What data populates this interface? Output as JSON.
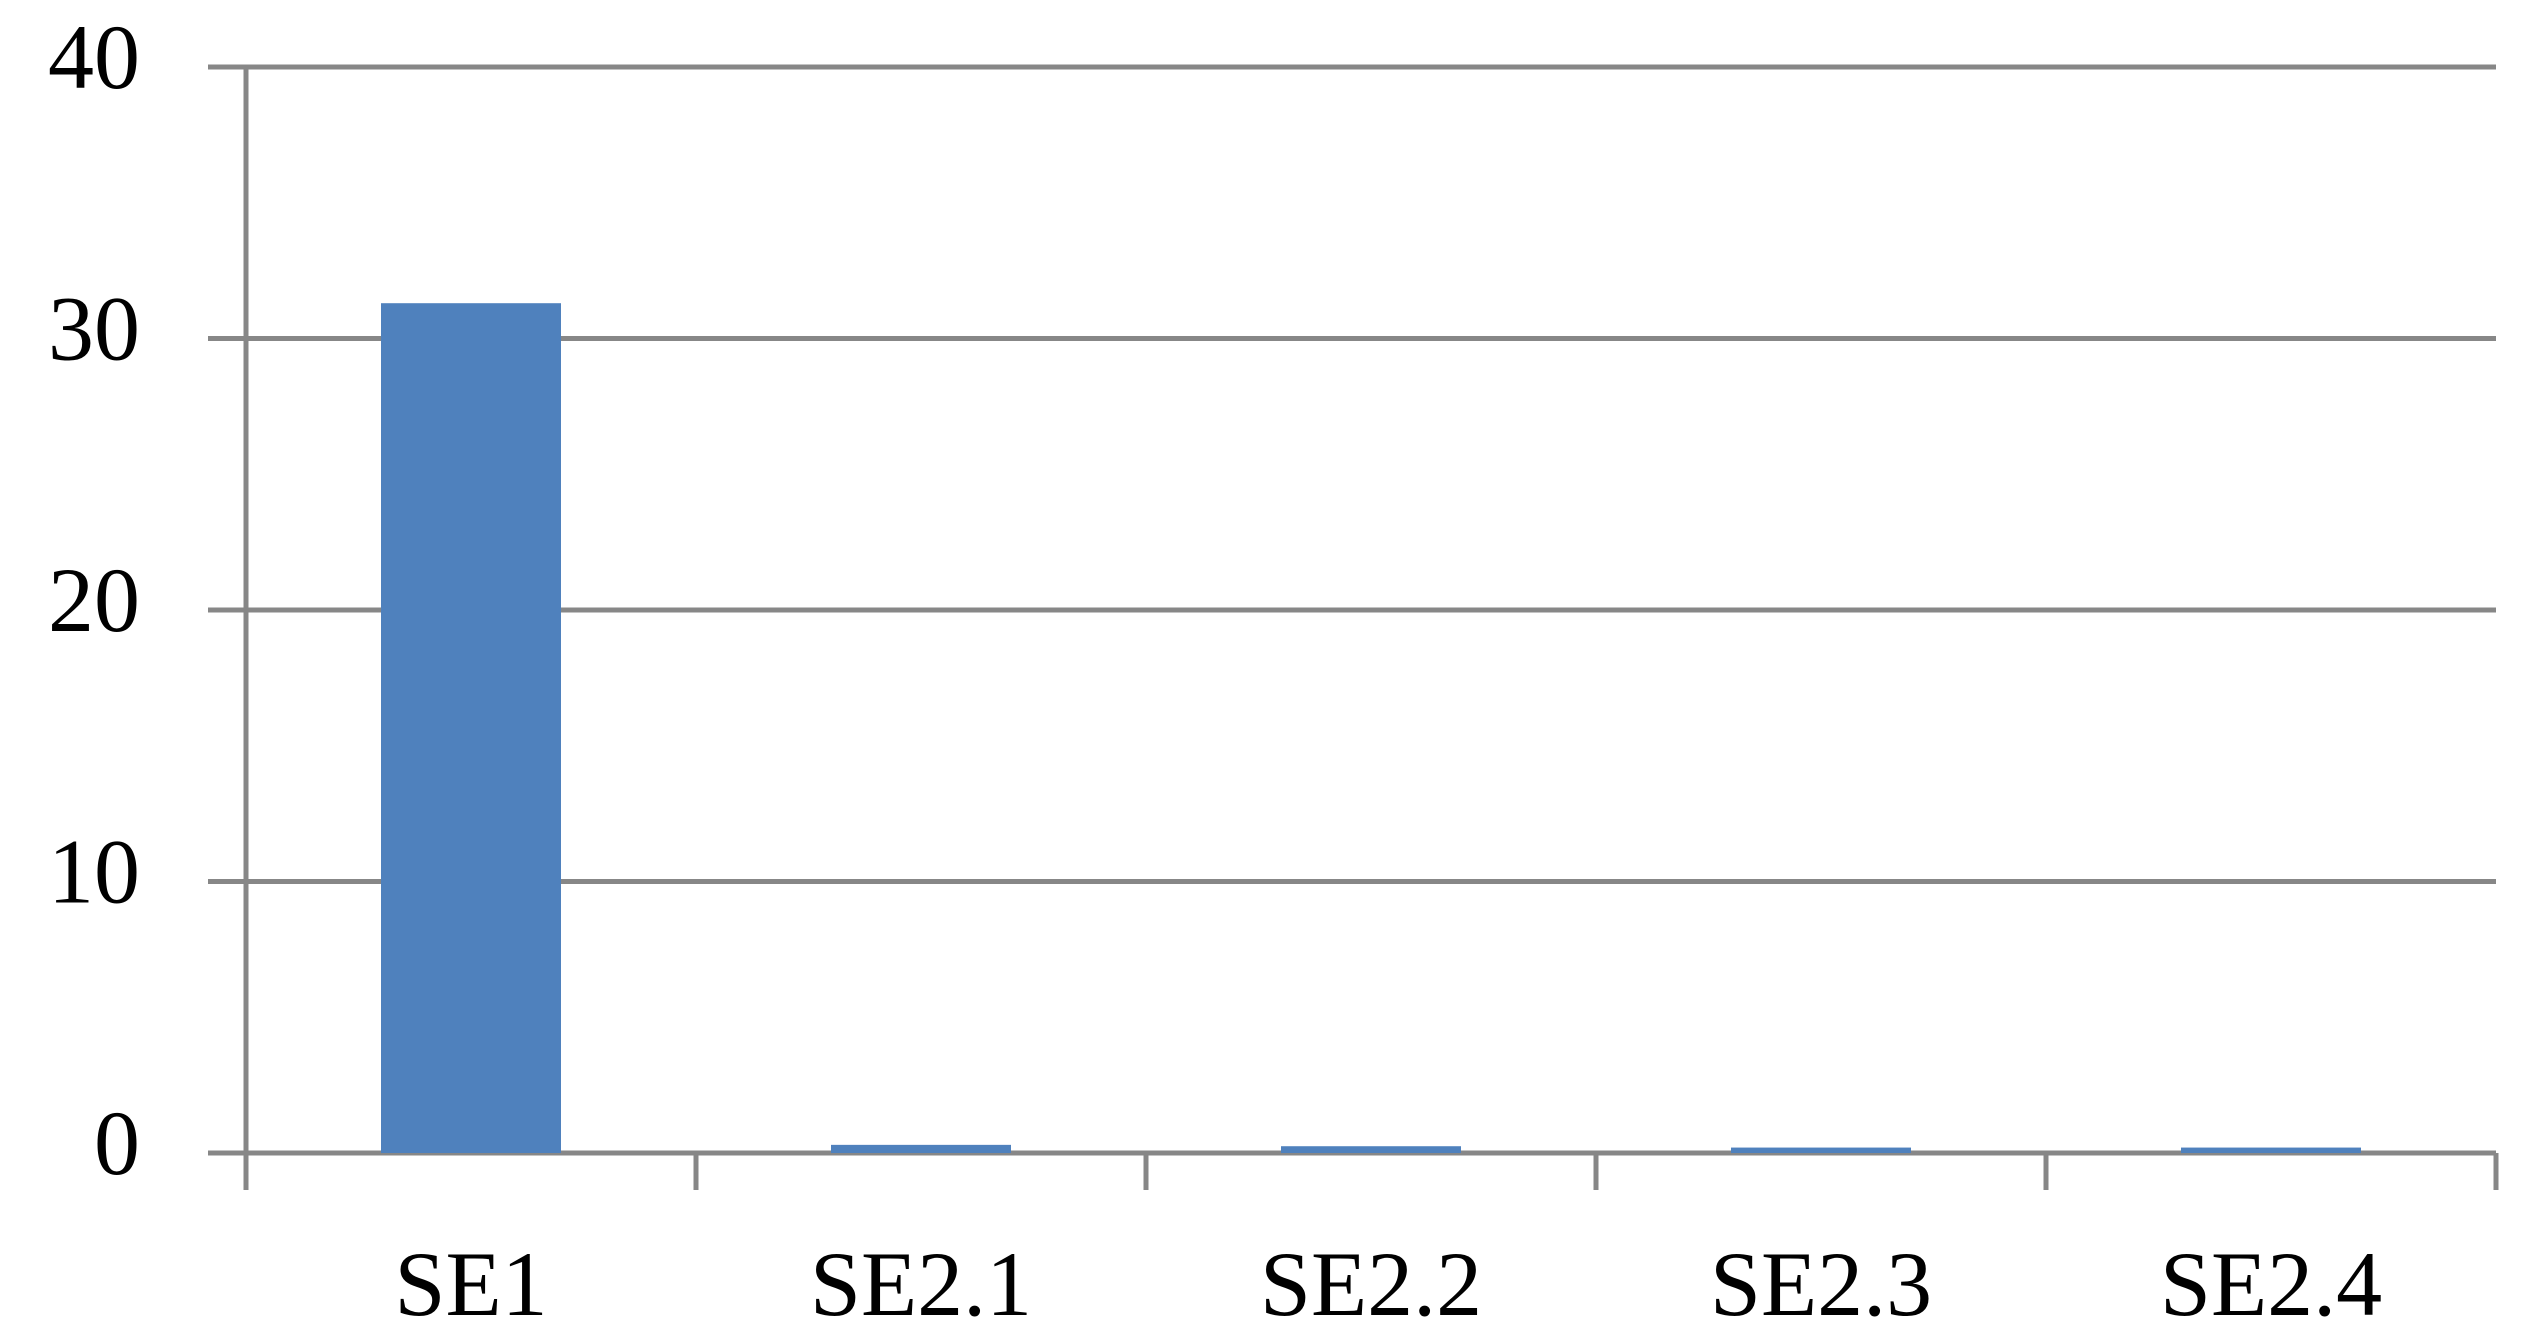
{
  "chart_data": {
    "type": "bar",
    "categories": [
      "SE1",
      "SE2.1",
      "SE2.2",
      "SE2.3",
      "SE2.4"
    ],
    "values": [
      31.3,
      0.3,
      0.25,
      0.2,
      0.2
    ],
    "color": "#4f81bd",
    "ylim": [
      0,
      40
    ],
    "yticks": [
      0,
      10,
      20,
      30,
      40
    ],
    "grid": true
  }
}
